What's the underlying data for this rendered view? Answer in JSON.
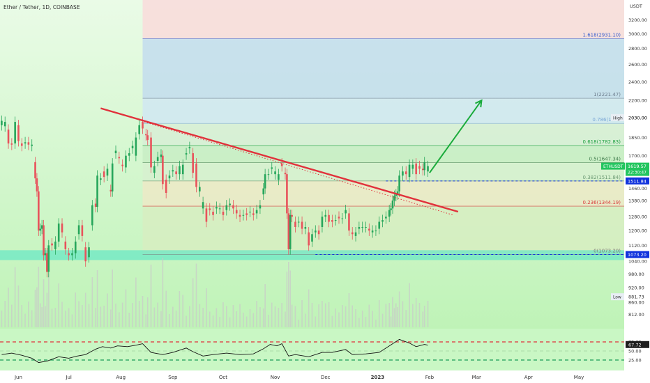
{
  "chart_data": {
    "type": "candlestick",
    "title": "Ether / Tether, 1D, COINBASE",
    "symbol": "ETHUSDT",
    "currency": "USDT",
    "x_labels": [
      "Jun",
      "Jul",
      "Aug",
      "Sep",
      "Oct",
      "Nov",
      "Dec",
      "2023",
      "Feb",
      "Mar",
      "Apr",
      "May"
    ],
    "x_range": [
      "2022-05-21",
      "2023-05-28"
    ],
    "y_range": [
      785,
      3420
    ],
    "y_scale": "log",
    "y_ticks": [
      3200,
      3000,
      2800,
      2600,
      2400,
      2200,
      2030,
      1850,
      1700,
      1580,
      1460,
      1380,
      1280,
      1200,
      1120,
      1040,
      980,
      920,
      860,
      812
    ],
    "y_tick_labels": [
      "3200.00",
      "3000.00",
      "2800.00",
      "2600.00",
      "2400.00",
      "2200.00",
      "2030.00",
      "1850.00",
      "1700.00",
      "1580.00",
      "1460.00",
      "1380.00",
      "1280.00",
      "1200.00",
      "1120.00",
      "1040.00",
      "980.00",
      "920.00",
      "860.00",
      "812.00"
    ],
    "candles": [
      [
        "2022-05-22",
        1960,
        2000
      ],
      [
        "2022-05-24",
        1950,
        1990
      ],
      [
        "2022-05-26",
        1920,
        1800
      ],
      [
        "2022-05-28",
        1800,
        1790
      ],
      [
        "2022-05-30",
        1800,
        1990
      ],
      [
        "2022-06-01",
        1960,
        1820
      ],
      [
        "2022-06-03",
        1800,
        1780
      ],
      [
        "2022-06-05",
        1800,
        1810
      ],
      [
        "2022-06-07",
        1810,
        1790
      ],
      [
        "2022-06-09",
        1780,
        1790
      ],
      [
        "2022-06-11",
        1650,
        1530
      ],
      [
        "2022-06-12",
        1530,
        1440
      ],
      [
        "2022-06-13",
        1440,
        1200
      ],
      [
        "2022-06-14",
        1200,
        1210
      ],
      [
        "2022-06-15",
        1210,
        1230
      ],
      [
        "2022-06-16",
        1230,
        1070
      ],
      [
        "2022-06-17",
        1070,
        1080
      ],
      [
        "2022-06-18",
        1080,
        990
      ],
      [
        "2022-06-19",
        990,
        1120
      ],
      [
        "2022-06-21",
        1130,
        1120
      ],
      [
        "2022-06-23",
        1100,
        1140
      ],
      [
        "2022-06-25",
        1140,
        1240
      ],
      [
        "2022-06-27",
        1240,
        1190
      ],
      [
        "2022-06-29",
        1140,
        1100
      ],
      [
        "2022-07-01",
        1080,
        1070
      ],
      [
        "2022-07-03",
        1070,
        1080
      ],
      [
        "2022-07-05",
        1080,
        1140
      ],
      [
        "2022-07-07",
        1180,
        1230
      ],
      [
        "2022-07-09",
        1230,
        1170
      ],
      [
        "2022-07-11",
        1110,
        1040
      ],
      [
        "2022-07-13",
        1060,
        1110
      ],
      [
        "2022-07-15",
        1230,
        1350
      ],
      [
        "2022-07-17",
        1360,
        1340
      ],
      [
        "2022-07-18",
        1340,
        1550
      ],
      [
        "2022-07-20",
        1520,
        1530
      ],
      [
        "2022-07-22",
        1580,
        1540
      ],
      [
        "2022-07-24",
        1550,
        1600
      ],
      [
        "2022-07-26",
        1450,
        1440
      ],
      [
        "2022-07-27",
        1440,
        1640
      ],
      [
        "2022-07-29",
        1720,
        1740
      ],
      [
        "2022-07-31",
        1690,
        1680
      ],
      [
        "2022-08-02",
        1630,
        1620
      ],
      [
        "2022-08-04",
        1610,
        1700
      ],
      [
        "2022-08-06",
        1700,
        1720
      ],
      [
        "2022-08-08",
        1760,
        1780
      ],
      [
        "2022-08-10",
        1700,
        1850
      ],
      [
        "2022-08-12",
        1880,
        1960
      ],
      [
        "2022-08-14",
        1990,
        1930
      ],
      [
        "2022-08-16",
        1880,
        1870
      ],
      [
        "2022-08-17",
        1870,
        1830
      ],
      [
        "2022-08-19",
        1850,
        1610
      ],
      [
        "2022-08-21",
        1570,
        1620
      ],
      [
        "2022-08-23",
        1660,
        1690
      ],
      [
        "2022-08-25",
        1690,
        1710
      ],
      [
        "2022-08-26",
        1700,
        1490
      ],
      [
        "2022-08-28",
        1520,
        1430
      ],
      [
        "2022-08-30",
        1530,
        1550
      ],
      [
        "2022-09-01",
        1580,
        1590
      ],
      [
        "2022-09-03",
        1580,
        1560
      ],
      [
        "2022-09-05",
        1560,
        1620
      ],
      [
        "2022-09-07",
        1560,
        1630
      ],
      [
        "2022-09-09",
        1710,
        1720
      ],
      [
        "2022-09-11",
        1760,
        1770
      ],
      [
        "2022-09-13",
        1720,
        1570
      ],
      [
        "2022-09-15",
        1640,
        1470
      ],
      [
        "2022-09-17",
        1440,
        1470
      ],
      [
        "2022-09-19",
        1330,
        1370
      ],
      [
        "2022-09-21",
        1330,
        1250
      ],
      [
        "2022-09-23",
        1330,
        1320
      ],
      [
        "2022-09-25",
        1310,
        1290
      ],
      [
        "2022-09-27",
        1330,
        1340
      ],
      [
        "2022-09-29",
        1330,
        1330
      ],
      [
        "2022-10-01",
        1310,
        1290
      ],
      [
        "2022-10-03",
        1320,
        1350
      ],
      [
        "2022-10-05",
        1350,
        1360
      ],
      [
        "2022-10-07",
        1350,
        1330
      ],
      [
        "2022-10-09",
        1320,
        1300
      ],
      [
        "2022-10-11",
        1290,
        1280
      ],
      [
        "2022-10-13",
        1290,
        1290
      ],
      [
        "2022-10-15",
        1300,
        1290
      ],
      [
        "2022-10-17",
        1310,
        1310
      ],
      [
        "2022-10-19",
        1300,
        1290
      ],
      [
        "2022-10-21",
        1300,
        1320
      ],
      [
        "2022-10-23",
        1330,
        1350
      ],
      [
        "2022-10-25",
        1420,
        1460
      ],
      [
        "2022-10-26",
        1460,
        1560
      ],
      [
        "2022-10-28",
        1560,
        1560
      ],
      [
        "2022-10-30",
        1600,
        1610
      ],
      [
        "2022-11-01",
        1560,
        1580
      ],
      [
        "2022-11-03",
        1520,
        1560
      ],
      [
        "2022-11-05",
        1640,
        1620
      ],
      [
        "2022-11-07",
        1570,
        1560
      ],
      [
        "2022-11-08",
        1560,
        1300
      ],
      [
        "2022-11-09",
        1300,
        1100
      ],
      [
        "2022-11-10",
        1100,
        1290
      ],
      [
        "2022-11-11",
        1290,
        1280
      ],
      [
        "2022-11-13",
        1250,
        1220
      ],
      [
        "2022-11-15",
        1250,
        1250
      ],
      [
        "2022-11-17",
        1250,
        1210
      ],
      [
        "2022-11-19",
        1210,
        1220
      ],
      [
        "2022-11-21",
        1190,
        1120
      ],
      [
        "2022-11-23",
        1140,
        1180
      ],
      [
        "2022-11-25",
        1190,
        1200
      ],
      [
        "2022-11-27",
        1200,
        1180
      ],
      [
        "2022-11-29",
        1220,
        1280
      ],
      [
        "2022-12-01",
        1280,
        1290
      ],
      [
        "2022-12-03",
        1290,
        1250
      ],
      [
        "2022-12-05",
        1260,
        1250
      ],
      [
        "2022-12-07",
        1260,
        1260
      ],
      [
        "2022-12-09",
        1280,
        1270
      ],
      [
        "2022-12-11",
        1270,
        1270
      ],
      [
        "2022-12-13",
        1300,
        1320
      ],
      [
        "2022-12-15",
        1300,
        1200
      ],
      [
        "2022-12-17",
        1190,
        1180
      ],
      [
        "2022-12-19",
        1170,
        1190
      ],
      [
        "2022-12-21",
        1210,
        1220
      ],
      [
        "2022-12-23",
        1220,
        1220
      ],
      [
        "2022-12-25",
        1220,
        1220
      ],
      [
        "2022-12-27",
        1210,
        1200
      ],
      [
        "2022-12-29",
        1190,
        1200
      ],
      [
        "2022-12-31",
        1200,
        1200
      ],
      [
        "2023-01-02",
        1210,
        1250
      ],
      [
        "2023-01-04",
        1250,
        1260
      ],
      [
        "2023-01-06",
        1270,
        1280
      ],
      [
        "2023-01-08",
        1280,
        1320
      ],
      [
        "2023-01-09",
        1320,
        1330
      ],
      [
        "2023-01-10",
        1330,
        1380
      ],
      [
        "2023-01-11",
        1380,
        1410
      ],
      [
        "2023-01-12",
        1410,
        1420
      ],
      [
        "2023-01-13",
        1420,
        1440
      ],
      [
        "2023-01-14",
        1440,
        1550
      ],
      [
        "2023-01-16",
        1550,
        1580
      ],
      [
        "2023-01-18",
        1580,
        1560
      ],
      [
        "2023-01-20",
        1540,
        1630
      ],
      [
        "2023-01-22",
        1600,
        1630
      ],
      [
        "2023-01-24",
        1640,
        1560
      ],
      [
        "2023-01-26",
        1620,
        1600
      ],
      [
        "2023-01-28",
        1600,
        1590
      ],
      [
        "2023-01-29",
        1590,
        1650
      ],
      [
        "2023-01-31",
        1580,
        1620
      ]
    ],
    "fibonacci": [
      {
        "ratio": "1.618",
        "label": "1.618(2931.10)",
        "value": 2931.1,
        "color": "#3a5fcd"
      },
      {
        "ratio": "1",
        "label": "1(2221.47)",
        "value": 2221.47,
        "color": "#6b7b8c"
      },
      {
        "ratio": "0.786",
        "label": "0.786(1976",
        "value": 1976,
        "color": "#7aa7d6"
      },
      {
        "ratio": "0.618",
        "label": "0.618(1782.83)",
        "value": 1782.83,
        "color": "#1b9e3e"
      },
      {
        "ratio": "0.5",
        "label": "0.5(1647.34)",
        "value": 1647.34,
        "color": "#3d7a4a"
      },
      {
        "ratio": "0.382",
        "label": "0.382(1511.84)",
        "value": 1511.84,
        "color": "#6c9a73"
      },
      {
        "ratio": "0.236",
        "label": "0.236(1344.19)",
        "value": 1344.19,
        "color": "#d93a3a"
      },
      {
        "ratio": "0",
        "label": "0(1073.20)",
        "value": 1073.2,
        "color": "#7a7a7a"
      }
    ],
    "fib_start": "2022-08-14",
    "trendlines": [
      {
        "type": "solid-red",
        "from": [
          "2022-07-20",
          2120
        ],
        "to": [
          "2023-02-18",
          1310
        ],
        "color": "#e1313b"
      },
      {
        "type": "dotted-red",
        "from": [
          "2022-08-15",
          1990
        ],
        "to": [
          "2023-02-15",
          1290
        ],
        "color": "#e1313b"
      }
    ],
    "projection_arrow": {
      "from": [
        "2023-02-01",
        1570
      ],
      "to": [
        "2023-03-04",
        2200
      ],
      "color": "#1aab3b"
    },
    "horizontal_levels": [
      {
        "value": 1511.84,
        "label": "1511.84",
        "color": "#1133dd",
        "from": "2023-01-06"
      },
      {
        "value": 1073.2,
        "label": "1073.20",
        "color": "#1133dd",
        "from": "2022-11-25"
      }
    ],
    "support_band": [
      1046,
      1095
    ],
    "price_badges": [
      {
        "name": "ETHUSDT",
        "value": "1619.57",
        "sub": "22:30:47",
        "price": 1619.57,
        "color": "#22c55e"
      },
      {
        "name": "High",
        "value": "2030.00",
        "price": 2030,
        "color": "#e8eef4"
      },
      {
        "name": "Low",
        "value": "881.73",
        "price": 881.73,
        "color": "#e8eef4"
      }
    ],
    "rsi": {
      "labels": [
        "75.00",
        "50.00",
        "25.00"
      ],
      "levels": [
        75,
        50,
        25
      ],
      "current": 67.72,
      "current_label": "67.72",
      "points": [
        [
          "2022-05-22",
          40
        ],
        [
          "2022-05-28",
          44
        ],
        [
          "2022-06-03",
          38
        ],
        [
          "2022-06-09",
          30
        ],
        [
          "2022-06-13",
          18
        ],
        [
          "2022-06-18",
          22
        ],
        [
          "2022-06-25",
          34
        ],
        [
          "2022-07-01",
          30
        ],
        [
          "2022-07-06",
          36
        ],
        [
          "2022-07-11",
          40
        ],
        [
          "2022-07-17",
          55
        ],
        [
          "2022-07-21",
          62
        ],
        [
          "2022-07-26",
          58
        ],
        [
          "2022-07-30",
          64
        ],
        [
          "2022-08-05",
          62
        ],
        [
          "2022-08-10",
          66
        ],
        [
          "2022-08-14",
          70
        ],
        [
          "2022-08-19",
          46
        ],
        [
          "2022-08-26",
          40
        ],
        [
          "2022-09-01",
          46
        ],
        [
          "2022-09-09",
          58
        ],
        [
          "2022-09-13",
          48
        ],
        [
          "2022-09-19",
          36
        ],
        [
          "2022-09-25",
          40
        ],
        [
          "2022-10-03",
          44
        ],
        [
          "2022-10-11",
          40
        ],
        [
          "2022-10-19",
          42
        ],
        [
          "2022-10-25",
          56
        ],
        [
          "2022-10-29",
          68
        ],
        [
          "2022-11-02",
          64
        ],
        [
          "2022-11-05",
          70
        ],
        [
          "2022-11-09",
          36
        ],
        [
          "2022-11-13",
          40
        ],
        [
          "2022-11-21",
          34
        ],
        [
          "2022-11-29",
          46
        ],
        [
          "2022-12-05",
          46
        ],
        [
          "2022-12-13",
          54
        ],
        [
          "2022-12-17",
          40
        ],
        [
          "2022-12-25",
          42
        ],
        [
          "2023-01-02",
          46
        ],
        [
          "2023-01-08",
          64
        ],
        [
          "2023-01-14",
          82
        ],
        [
          "2023-01-20",
          72
        ],
        [
          "2023-01-24",
          62
        ],
        [
          "2023-01-29",
          68
        ],
        [
          "2023-01-31",
          66
        ]
      ]
    },
    "colors": {
      "up": "#26a65b",
      "down": "#e8525b",
      "volume": "#c9c9c9",
      "background": "#c9f7c4",
      "support_band": "#47e2c6",
      "rsi_line": "#111111",
      "rsi_upper": "#e1313b",
      "rsi_lower": "#1a9b57"
    }
  }
}
